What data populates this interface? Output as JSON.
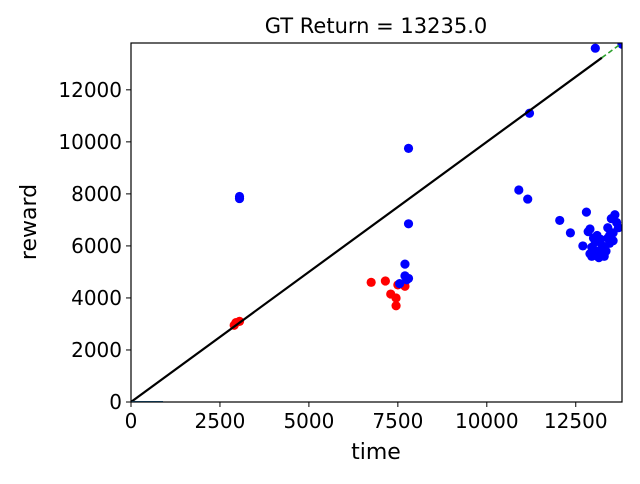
{
  "chart_data": {
    "type": "scatter",
    "title": "GT Return = 13235.0",
    "xlabel": "time",
    "ylabel": "reward",
    "xlim": [
      0,
      13800
    ],
    "ylim": [
      0,
      13800
    ],
    "xticks": [
      0,
      2500,
      5000,
      7500,
      10000,
      12500
    ],
    "xtick_labels": [
      "0",
      "2500",
      "5000",
      "7500",
      "10000",
      "12500"
    ],
    "yticks": [
      0,
      2000,
      4000,
      6000,
      8000,
      10000,
      12000
    ],
    "ytick_labels": [
      "0",
      "2000",
      "4000",
      "6000",
      "8000",
      "10000",
      "12000"
    ],
    "grid": false,
    "legend": "none",
    "reference_line": {
      "x": [
        0,
        13235
      ],
      "y": [
        0,
        13235
      ],
      "color": "#000000"
    },
    "extension_line": {
      "x": [
        13235,
        13800
      ],
      "y": [
        13235,
        13800
      ],
      "color": "#2ca02c",
      "style": "dashed"
    },
    "baseline_segment": {
      "x": [
        0,
        900
      ],
      "y": [
        0,
        0
      ],
      "color": "#1f77b4"
    },
    "series": [
      {
        "color": "#ff0000",
        "points": [
          [
            2900,
            2950
          ],
          [
            2950,
            3050
          ],
          [
            3050,
            3100
          ],
          [
            6750,
            4600
          ],
          [
            7150,
            4650
          ],
          [
            7300,
            4150
          ],
          [
            7450,
            4000
          ],
          [
            7450,
            3700
          ],
          [
            7500,
            4500
          ],
          [
            7700,
            4450
          ]
        ]
      },
      {
        "color": "#0000ff",
        "points": [
          [
            3050,
            7900
          ],
          [
            3050,
            7820
          ],
          [
            7550,
            4550
          ],
          [
            7700,
            4850
          ],
          [
            7700,
            5300
          ],
          [
            7800,
            4750
          ],
          [
            7750,
            4700
          ],
          [
            7800,
            6850
          ],
          [
            7800,
            9750
          ],
          [
            10900,
            8150
          ],
          [
            11150,
            7800
          ],
          [
            11200,
            11100
          ],
          [
            12050,
            6980
          ],
          [
            12350,
            6500
          ],
          [
            12700,
            6000
          ],
          [
            12800,
            7300
          ],
          [
            12850,
            6550
          ],
          [
            12900,
            6650
          ],
          [
            12950,
            5950
          ],
          [
            12900,
            5700
          ],
          [
            12950,
            5600
          ],
          [
            13000,
            6300
          ],
          [
            13050,
            6150
          ],
          [
            13100,
            6400
          ],
          [
            13100,
            5800
          ],
          [
            13150,
            5550
          ],
          [
            13200,
            6250
          ],
          [
            13250,
            6000
          ],
          [
            13300,
            5700
          ],
          [
            13300,
            5600
          ],
          [
            13350,
            5800
          ],
          [
            13400,
            6700
          ],
          [
            13400,
            6300
          ],
          [
            13450,
            6100
          ],
          [
            13450,
            6400
          ],
          [
            13500,
            7050
          ],
          [
            13550,
            6500
          ],
          [
            13550,
            6200
          ],
          [
            13600,
            7200
          ],
          [
            13650,
            6900
          ],
          [
            13700,
            6700
          ],
          [
            13050,
            13600
          ],
          [
            13800,
            13750
          ]
        ]
      }
    ]
  }
}
